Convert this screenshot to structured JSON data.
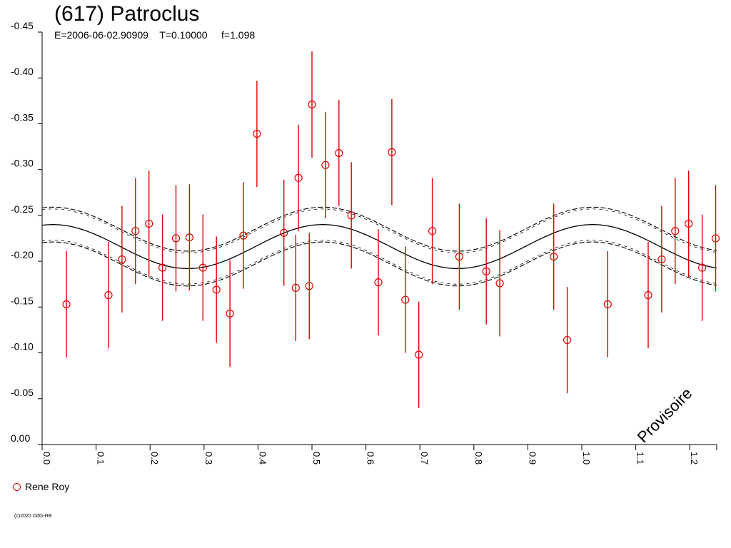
{
  "header": {
    "title": "(617) Patroclus",
    "subtitle": "E=2006-06-02.90909    T=0.10000     f=1.098"
  },
  "legend": {
    "label": "Rene Roy",
    "marker_color": "#e00000"
  },
  "copyright": "(c)2020 OdG-RB",
  "watermark": "Provisoire",
  "chart_data": {
    "type": "scatter",
    "title": "(617) Patroclus",
    "xlabel": "",
    "ylabel": "",
    "xlim": [
      0.0,
      1.25
    ],
    "ylim": [
      0.0,
      -0.45
    ],
    "y_reversed": true,
    "grid": false,
    "x_ticks": [
      "0.0",
      "0.1",
      "0.2",
      "0.3",
      "0.4",
      "0.5",
      "0.6",
      "0.7",
      "0.8",
      "0.9",
      "1.0",
      "1.1",
      "1.2"
    ],
    "y_ticks": [
      "-0.45",
      "-0.40",
      "-0.35",
      "-0.30",
      "-0.25",
      "-0.20",
      "-0.15",
      "-0.10",
      "-0.05",
      "0.00"
    ],
    "series": [
      {
        "name": "Rene Roy",
        "color": "#e00000",
        "marker": "circle",
        "points": [
          {
            "x": 0.045,
            "y": -0.153,
            "err": 0.058
          },
          {
            "x": 0.123,
            "y": -0.163,
            "err": 0.058
          },
          {
            "x": 0.148,
            "y": -0.202,
            "err": 0.058
          },
          {
            "x": 0.173,
            "y": -0.233,
            "err": 0.058
          },
          {
            "x": 0.198,
            "y": -0.241,
            "err": 0.058
          },
          {
            "x": 0.223,
            "y": -0.193,
            "err": 0.058
          },
          {
            "x": 0.248,
            "y": -0.225,
            "err": 0.058
          },
          {
            "x": 0.273,
            "y": -0.226,
            "err": 0.058
          },
          {
            "x": 0.298,
            "y": -0.193,
            "err": 0.058
          },
          {
            "x": 0.323,
            "y": -0.169,
            "err": 0.058
          },
          {
            "x": 0.348,
            "y": -0.143,
            "err": 0.058
          },
          {
            "x": 0.373,
            "y": -0.228,
            "err": 0.058
          },
          {
            "x": 0.398,
            "y": -0.339,
            "err": 0.058
          },
          {
            "x": 0.448,
            "y": -0.231,
            "err": 0.058
          },
          {
            "x": 0.47,
            "y": -0.171,
            "err": 0.058
          },
          {
            "x": 0.475,
            "y": -0.291,
            "err": 0.058
          },
          {
            "x": 0.495,
            "y": -0.173,
            "err": 0.058
          },
          {
            "x": 0.5,
            "y": -0.371,
            "err": 0.058
          },
          {
            "x": 0.525,
            "y": -0.305,
            "err": 0.058
          },
          {
            "x": 0.55,
            "y": -0.318,
            "err": 0.058
          },
          {
            "x": 0.573,
            "y": -0.25,
            "err": 0.058
          },
          {
            "x": 0.623,
            "y": -0.177,
            "err": 0.058
          },
          {
            "x": 0.648,
            "y": -0.319,
            "err": 0.058
          },
          {
            "x": 0.673,
            "y": -0.158,
            "err": 0.058
          },
          {
            "x": 0.698,
            "y": -0.098,
            "err": 0.058
          },
          {
            "x": 0.723,
            "y": -0.233,
            "err": 0.058
          },
          {
            "x": 0.773,
            "y": -0.205,
            "err": 0.058
          },
          {
            "x": 0.823,
            "y": -0.189,
            "err": 0.058
          },
          {
            "x": 0.848,
            "y": -0.176,
            "err": 0.058
          },
          {
            "x": 0.948,
            "y": -0.205,
            "err": 0.058
          },
          {
            "x": 0.973,
            "y": -0.114,
            "err": 0.058
          },
          {
            "x": 1.048,
            "y": -0.153,
            "err": 0.058
          },
          {
            "x": 1.123,
            "y": -0.163,
            "err": 0.058
          },
          {
            "x": 1.148,
            "y": -0.202,
            "err": 0.058
          },
          {
            "x": 1.173,
            "y": -0.233,
            "err": 0.058
          },
          {
            "x": 1.198,
            "y": -0.241,
            "err": 0.058
          },
          {
            "x": 1.223,
            "y": -0.193,
            "err": 0.058
          },
          {
            "x": 1.248,
            "y": -0.225,
            "err": 0.058
          }
        ]
      }
    ],
    "model_curve": {
      "description": "fitted sinusoid with upper/lower uncertainty bounds",
      "center_mean": -0.216,
      "amplitude": 0.024,
      "period": 0.5,
      "peak_phase": 0.02,
      "band_offset": 0.019,
      "color": "#000000"
    }
  }
}
